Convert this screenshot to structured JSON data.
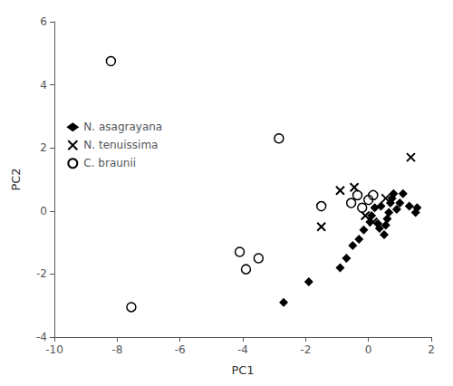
{
  "chart_data": {
    "type": "scatter",
    "xlabel": "PC1",
    "ylabel": "PC2",
    "xlim": [
      -10,
      2
    ],
    "ylim": [
      -4,
      6
    ],
    "xticks": [
      -10,
      -8,
      -6,
      -4,
      -2,
      0,
      2
    ],
    "yticks": [
      -4,
      -2,
      0,
      2,
      4,
      6
    ],
    "grid": false,
    "legend": "center left",
    "series": [
      {
        "name": "N. asagrayana",
        "color": "#000000",
        "marker": "diamond",
        "x": [
          -2.7,
          -1.9,
          -0.9,
          -0.7,
          -0.5,
          -0.3,
          -0.15,
          0.05,
          0.1,
          0.2,
          0.3,
          0.35,
          0.4,
          0.5,
          0.55,
          0.6,
          0.65,
          0.7,
          0.75,
          0.8,
          0.9,
          1.0,
          1.1,
          1.3,
          1.5,
          1.55
        ],
        "values": [
          -2.9,
          -2.25,
          -1.8,
          -1.5,
          -1.1,
          -0.9,
          -0.6,
          -0.35,
          -0.15,
          0.1,
          -0.4,
          -0.55,
          0.15,
          -0.75,
          -0.45,
          -0.25,
          -0.05,
          0.25,
          0.4,
          0.55,
          0.05,
          0.25,
          0.55,
          0.15,
          -0.05,
          0.1
        ]
      },
      {
        "name": "N. tenuissima",
        "color": "#000000",
        "marker": "cross",
        "x": [
          -1.5,
          -0.9,
          -0.45,
          -0.1,
          0.15,
          0.55,
          1.35
        ],
        "values": [
          -0.5,
          0.65,
          0.75,
          -0.15,
          -0.35,
          0.4,
          1.7
        ]
      },
      {
        "name": "C. braunii",
        "color": "#000000",
        "marker": "open circle",
        "x": [
          -8.2,
          -7.55,
          -4.1,
          -3.9,
          -3.5,
          -2.85,
          -1.5,
          -0.55,
          -0.35,
          -0.2,
          0.0,
          0.15
        ],
        "values": [
          4.75,
          -3.05,
          -1.3,
          -1.85,
          -1.5,
          2.3,
          0.15,
          0.25,
          0.5,
          0.1,
          0.35,
          0.5
        ]
      }
    ]
  }
}
